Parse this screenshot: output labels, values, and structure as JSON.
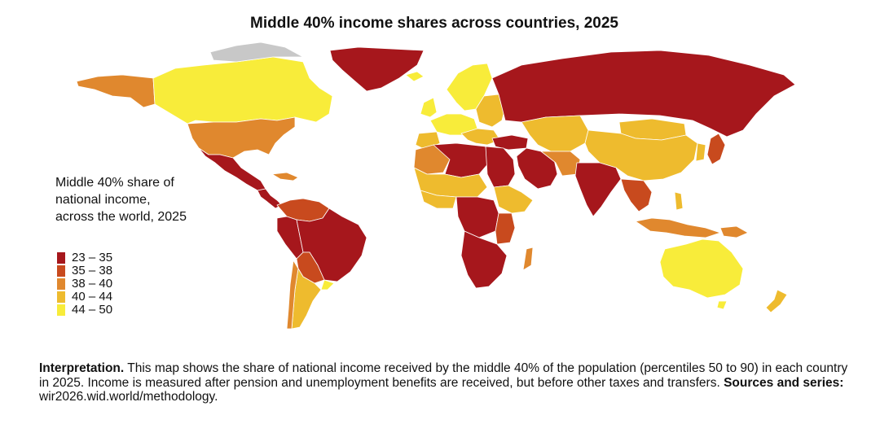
{
  "title": "Middle 40% income shares across countries, 2025",
  "legend": {
    "heading": [
      "Middle 40% share of",
      "national income,",
      "across the world, 2025"
    ],
    "items": [
      {
        "label": "23 – 35",
        "color": "#a6171c"
      },
      {
        "label": "35 – 38",
        "color": "#c84a1e"
      },
      {
        "label": "38 – 40",
        "color": "#e0882e"
      },
      {
        "label": "40 – 44",
        "color": "#eebb2e"
      },
      {
        "label": "44 – 50",
        "color": "#f8ec3a"
      }
    ]
  },
  "note": {
    "interpretation_label": "Interpretation.",
    "interpretation_text": " This map shows the share of national income received by the middle 40% of the population (percentiles 50 to 90) in each country in 2025. Income is measured after pension and unemployment benefits are received, but before other taxes and transfers.",
    "sources_label": "Sources and series:",
    "sources_text": " wir2026.wid.world/methodology."
  },
  "colors": {
    "no_data": "#c8c8c8",
    "border": "#ffffff",
    "background": "#ffffff"
  }
}
